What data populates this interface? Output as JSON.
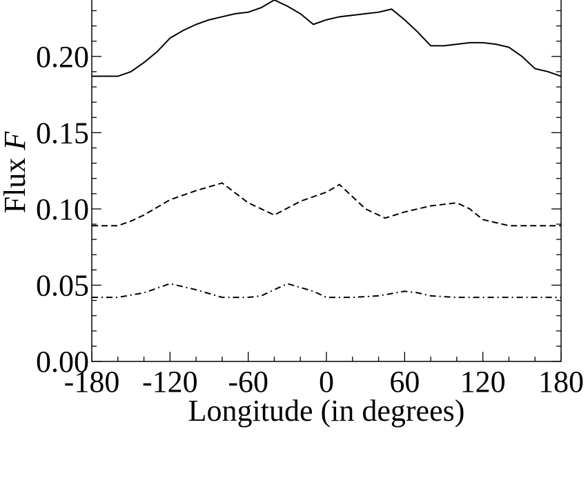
{
  "chart_data": {
    "type": "line",
    "xlabel": "Longitude (in degrees)",
    "ylabel": "Flux",
    "ylabel_symbol": "F",
    "xlim": [
      -180,
      180
    ],
    "ylim": [
      0,
      0.237
    ],
    "xticks": [
      -180,
      -120,
      -60,
      0,
      60,
      120,
      180
    ],
    "yticks": [
      {
        "value": 0,
        "label": "0.00"
      },
      0.05,
      {
        "value": 0.1,
        "label": "0.10"
      },
      0.15,
      {
        "value": 0.2,
        "label": "0.20"
      }
    ],
    "series": [
      {
        "color": "#000000",
        "dash": "solid",
        "x": [
          -180,
          -160,
          -150,
          -140,
          -130,
          -120,
          -110,
          -100,
          -90,
          -80,
          -70,
          -60,
          -50,
          -40,
          -30,
          -20,
          -10,
          0,
          10,
          20,
          30,
          40,
          50,
          60,
          70,
          80,
          90,
          100,
          110,
          120,
          130,
          140,
          150,
          160,
          170,
          180
        ],
        "values": [
          0.187,
          0.187,
          0.19,
          0.196,
          0.203,
          0.212,
          0.217,
          0.221,
          0.224,
          0.226,
          0.228,
          0.229,
          0.232,
          0.237,
          0.233,
          0.228,
          0.221,
          0.224,
          0.226,
          0.227,
          0.228,
          0.229,
          0.231,
          0.224,
          0.216,
          0.207,
          0.207,
          0.208,
          0.209,
          0.209,
          0.208,
          0.206,
          0.2,
          0.192,
          0.19,
          0.187
        ]
      },
      {
        "color": "#000000",
        "dash": "dashed",
        "x": [
          -180,
          -160,
          -150,
          -140,
          -120,
          -100,
          -80,
          -60,
          -40,
          -20,
          0,
          10,
          20,
          30,
          45,
          60,
          80,
          100,
          110,
          120,
          140,
          180
        ],
        "values": [
          0.089,
          0.089,
          0.092,
          0.096,
          0.106,
          0.112,
          0.117,
          0.104,
          0.096,
          0.105,
          0.111,
          0.116,
          0.108,
          0.1,
          0.094,
          0.098,
          0.102,
          0.104,
          0.1,
          0.093,
          0.089,
          0.089
        ]
      },
      {
        "color": "#000000",
        "dash": "dashdot",
        "x": [
          -180,
          -160,
          -140,
          -120,
          -100,
          -80,
          -60,
          -50,
          -30,
          -10,
          0,
          20,
          40,
          60,
          70,
          80,
          100,
          180
        ],
        "values": [
          0.042,
          0.042,
          0.045,
          0.051,
          0.047,
          0.042,
          0.042,
          0.043,
          0.051,
          0.046,
          0.042,
          0.042,
          0.043,
          0.046,
          0.045,
          0.043,
          0.042,
          0.042
        ]
      }
    ]
  }
}
